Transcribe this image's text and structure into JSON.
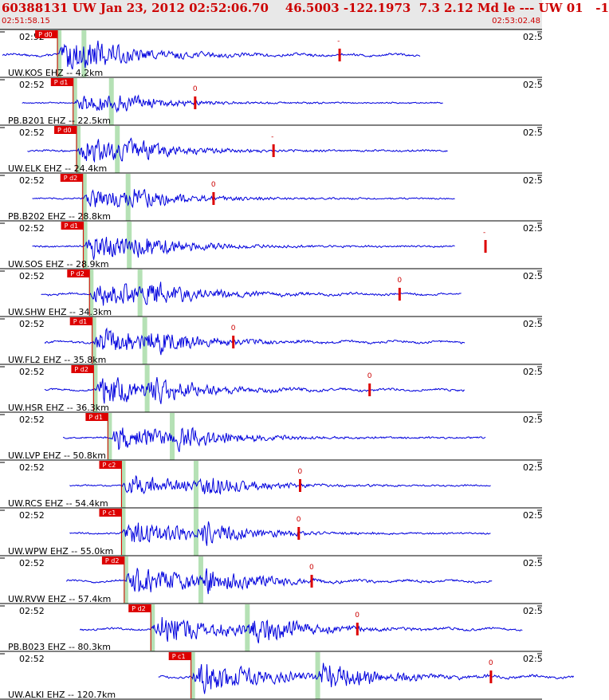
{
  "header": {
    "title": "60388131 UW Jan 23, 2012 02:52:06.70    46.5003 -122.1973  7.3 2.12 Md le --- UW 01   -1",
    "start_time": "02:51:58.15",
    "end_time": "02:53:02.48"
  },
  "colors": {
    "trace": "#0000dd",
    "pick": "#dd0000",
    "theoretical_band": "#a8dca8",
    "header_text": "#cc0000",
    "header_bg": "#e8e8e8"
  },
  "chart_data": {
    "type": "line",
    "title": "60388131 UW Jan 23, 2012 02:52:06.70    46.5003 -122.1973  7.3 2.12 Md le --- UW 01   -1",
    "x_range": [
      "02:51:58.15",
      "02:53:02.48"
    ],
    "grid": false,
    "traces": [
      {
        "label": "UW.KOS EHZ -- 4.2km",
        "tick_left": "02:52",
        "tick_right": "02:5",
        "pick": "P d0",
        "coda_marker": "-",
        "dist_km": 4.2,
        "p_time_s": 8.2,
        "start_s": 0.1,
        "end_s": 61.5,
        "amp": 0.9,
        "coda_s": 41.4
      },
      {
        "label": "PB.B201 EHZ -- 22.5km",
        "tick_left": "02:52",
        "tick_right": "02:5",
        "pick": "P d1",
        "coda_marker": "0",
        "dist_km": 22.5,
        "p_time_s": 10.5,
        "start_s": 3.0,
        "end_s": 64.8,
        "amp": 0.55,
        "coda_s": 17.9
      },
      {
        "label": "UW.ELK EHZ -- 24.4km",
        "tick_left": "02:52",
        "tick_right": "02:5",
        "pick": "P d0",
        "coda_marker": "-",
        "dist_km": 24.4,
        "p_time_s": 11.0,
        "start_s": 3.8,
        "end_s": 65.5,
        "amp": 0.75,
        "coda_s": 28.9
      },
      {
        "label": "PB.B202 EHZ -- 28.8km",
        "tick_left": "02:52",
        "tick_right": "02:5",
        "pick": "P d2",
        "coda_marker": "0",
        "dist_km": 28.8,
        "p_time_s": 11.9,
        "start_s": 4.5,
        "end_s": 66.5,
        "amp": 0.65,
        "coda_s": 19.2
      },
      {
        "label": "UW.SOS EHZ -- 28.9km",
        "tick_left": "02:52",
        "tick_right": "02:5",
        "pick": "P d1",
        "coda_marker": "-",
        "dist_km": 28.9,
        "p_time_s": 12.0,
        "start_s": 4.5,
        "end_s": 66.5,
        "amp": 0.75,
        "coda_s": 59.0
      },
      {
        "label": "UW.SHW EHZ -- 34.3km",
        "tick_left": "02:52",
        "tick_right": "02:5",
        "pick": "P d2",
        "coda_marker": "0",
        "dist_km": 34.3,
        "p_time_s": 12.9,
        "start_s": 5.8,
        "end_s": 67.5,
        "amp": 0.85,
        "coda_s": 45.5
      },
      {
        "label": "UW.FL2 EHZ -- 35.8km",
        "tick_left": "02:52",
        "tick_right": "02:5",
        "pick": "P d1",
        "coda_marker": "0",
        "dist_km": 35.8,
        "p_time_s": 13.3,
        "start_s": 6.3,
        "end_s": 68.0,
        "amp": 0.85,
        "coda_s": 20.7
      },
      {
        "label": "UW.HSR EHZ -- 36.3km",
        "tick_left": "02:52",
        "tick_right": "02:5",
        "pick": "P d2",
        "coda_marker": "0",
        "dist_km": 36.3,
        "p_time_s": 13.5,
        "start_s": 6.3,
        "end_s": 68.0,
        "amp": 0.85,
        "coda_s": 40.5
      },
      {
        "label": "UW.LVP EHZ -- 50.8km",
        "tick_left": "02:52",
        "tick_right": "02:5",
        "pick": "P d1",
        "coda_marker": "",
        "dist_km": 50.8,
        "p_time_s": 15.6,
        "start_s": 9.0,
        "end_s": 71.0,
        "amp": 0.75,
        "coda_s": 0
      },
      {
        "label": "UW.RCS EHZ -- 54.4km",
        "tick_left": "02:52",
        "tick_right": "02:5",
        "pick": "P c2",
        "coda_marker": "0",
        "dist_km": 54.4,
        "p_time_s": 17.6,
        "start_s": 10.0,
        "end_s": 71.8,
        "amp": 0.65,
        "coda_s": 26.2
      },
      {
        "label": "UW.WPW EHZ -- 55.0km",
        "tick_left": "02:52",
        "tick_right": "02:5",
        "pick": "P c1",
        "coda_marker": "0",
        "dist_km": 55.0,
        "p_time_s": 17.6,
        "start_s": 10.0,
        "end_s": 71.8,
        "amp": 0.75,
        "coda_s": 26.0
      },
      {
        "label": "UW.RVW EHZ -- 57.4km",
        "tick_left": "02:52",
        "tick_right": "02:5",
        "pick": "P d2",
        "coda_marker": "0",
        "dist_km": 57.4,
        "p_time_s": 18.0,
        "start_s": 9.5,
        "end_s": 72.0,
        "amp": 0.85,
        "coda_s": 27.5
      },
      {
        "label": "PB.B023 EHZ -- 80.3km",
        "tick_left": "02:52",
        "tick_right": "02:5",
        "pick": "P d2",
        "coda_marker": "0",
        "dist_km": 80.3,
        "p_time_s": 21.9,
        "start_s": 11.5,
        "end_s": 76.5,
        "amp": 0.9,
        "coda_s": 30.3
      },
      {
        "label": "UW.ALKI EHZ -- 120.7km",
        "tick_left": "02:52",
        "tick_right": "02:5",
        "pick": "P c1",
        "coda_marker": "0",
        "dist_km": 120.7,
        "p_time_s": 27.8,
        "start_s": 23.0,
        "end_s": 84.0,
        "amp": 0.95,
        "coda_s": 44.0
      }
    ]
  }
}
